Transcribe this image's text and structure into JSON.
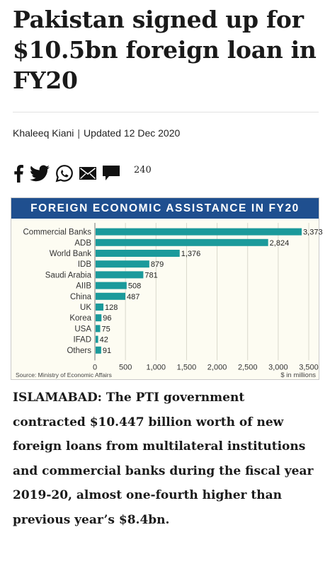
{
  "article": {
    "headline": "Pakistan signed up for $10.5bn foreign loan in FY20",
    "author": "Khaleeq Kiani",
    "separator": "|",
    "updated": "Updated 12 Dec 2020",
    "comment_count": "240",
    "body": "ISLAMABAD: The PTI government contracted $10.447 billion worth of new foreign loans from multilateral institutions and commercial banks during the fiscal year 2019-20, almost one-fourth higher than previous year’s $8.4bn."
  },
  "share": {
    "icons": [
      "facebook-icon",
      "twitter-icon",
      "whatsapp-icon",
      "email-icon",
      "comment-icon"
    ]
  },
  "colors": {
    "bar": "#1b9a9b",
    "title_bar": "#1f4f8f",
    "chart_bg": "#fdfcf2"
  },
  "chart_data": {
    "type": "bar",
    "orientation": "horizontal",
    "title": "FOREIGN ECONOMIC ASSISTANCE IN FY20",
    "categories": [
      "Commercial Banks",
      "ADB",
      "World Bank",
      "IDB",
      "Saudi Arabia",
      "AIIB",
      "China",
      "UK",
      "Korea",
      "USA",
      "IFAD",
      "Others"
    ],
    "values": [
      3373,
      2824,
      1376,
      879,
      781,
      508,
      487,
      128,
      96,
      75,
      42,
      91
    ],
    "value_labels": [
      "3,373",
      "2,824",
      "1,376",
      "879",
      "781",
      "508",
      "487",
      "128",
      "96",
      "75",
      "42",
      "91"
    ],
    "xticks": [
      "0",
      "500",
      "1,000",
      "1,500",
      "2,000",
      "2,500",
      "3,000",
      "3,500"
    ],
    "xlim": [
      0,
      3500
    ],
    "unit_label": "$ in millions",
    "source": "Source: Ministry of Economic Affairs",
    "grid": true
  }
}
